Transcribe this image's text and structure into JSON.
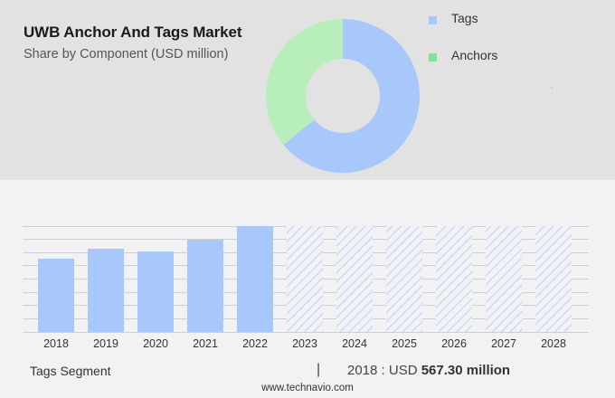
{
  "header": {
    "title": "UWB Anchor And Tags Market",
    "subtitle": "Share by Component (USD million)"
  },
  "legend": [
    {
      "label": "Tags",
      "color": "#a8c8fc"
    },
    {
      "label": "Anchors",
      "color": "#7ee49a"
    }
  ],
  "footer": {
    "segment": "Tags Segment",
    "separator": "|",
    "value_prefix": "2018 : USD ",
    "value_bold": "567.30 million",
    "source": "www.technavio.com"
  },
  "chart_data": [
    {
      "type": "pie",
      "title": "UWB Anchor And Tags Market",
      "subtitle": "Share by Component (USD million)",
      "donut": true,
      "labels": [
        "Tags",
        "Anchors"
      ],
      "values": [
        64,
        36
      ],
      "colors": [
        "#a8c8fc",
        "#b8eebb"
      ],
      "legend_position": "right"
    },
    {
      "type": "bar",
      "title": "Tags Segment",
      "categories": [
        "2018",
        "2019",
        "2020",
        "2021",
        "2022",
        "2023",
        "2024",
        "2025",
        "2026",
        "2027",
        "2028"
      ],
      "series": [
        {
          "name": "Tags (historical)",
          "values": [
            567.3,
            644,
            623,
            714,
            819,
            null,
            null,
            null,
            null,
            null,
            null
          ]
        },
        {
          "name": "Tags (forecast, hatched)",
          "values": [
            null,
            null,
            null,
            null,
            null,
            819,
            819,
            819,
            819,
            819,
            819
          ]
        }
      ],
      "annotation": "2018 : USD 567.30 million",
      "ylim": [
        0,
        819
      ],
      "grid": true,
      "y_axis_labels_visible": false,
      "bar_color": "#a8c8fc"
    }
  ]
}
